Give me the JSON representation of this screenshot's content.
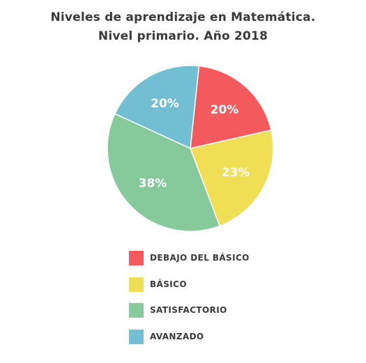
{
  "chart_data": {
    "type": "pie",
    "title": "Niveles de aprendizaje en Matemática.",
    "subtitle": "Nivel primario. Año 2018",
    "categories": [
      "DEBAJO DEL BÁSICO",
      "BÁSICO",
      "SATISFACTORIO",
      "AVANZADO"
    ],
    "values": [
      20,
      23,
      38,
      20
    ],
    "labels": [
      "20%",
      "23%",
      "38%",
      "20%"
    ],
    "colors": [
      "#f25a5e",
      "#f0df55",
      "#86c99a",
      "#72bed2"
    ],
    "legend": "bottom"
  }
}
